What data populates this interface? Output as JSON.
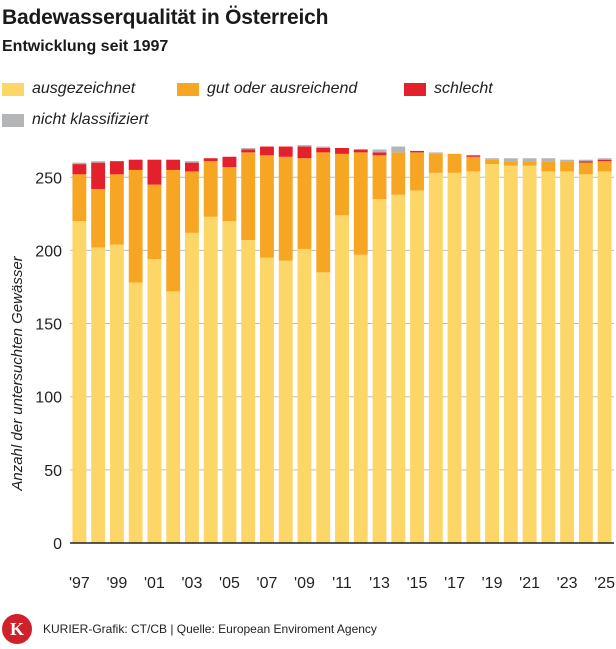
{
  "header": {
    "title": "Badewasserqualität in Österreich",
    "subtitle": "Entwicklung seit 1997"
  },
  "legend": [
    {
      "label": "ausgezeichnet",
      "color": "#fcd667"
    },
    {
      "label": "gut oder ausreichend",
      "color": "#f6a623"
    },
    {
      "label": "schlecht",
      "color": "#e3202c"
    },
    {
      "label": "nicht klassifiziert",
      "color": "#b3b5b7"
    }
  ],
  "footer": {
    "logo_letter": "K",
    "credit": "KURIER-Grafik: CT/CB | Quelle: European Enviroment Agency"
  },
  "chart_data": {
    "type": "bar",
    "stacked": true,
    "ylabel": "Anzahl der untersuchten Gewässer",
    "ylim": [
      0,
      270
    ],
    "yticks": [
      0,
      50,
      100,
      150,
      200,
      250
    ],
    "grid": true,
    "legend_position": "top",
    "categories": [
      "1997",
      "1998",
      "1999",
      "2000",
      "2001",
      "2002",
      "2003",
      "2004",
      "2005",
      "2006",
      "2007",
      "2008",
      "2009",
      "2010",
      "2011",
      "2012",
      "2013",
      "2014",
      "2015",
      "2016",
      "2017",
      "2018",
      "2019",
      "2020",
      "2021",
      "2022",
      "2023",
      "2024",
      "2025"
    ],
    "xtick_labels": [
      "'97",
      "",
      "'99",
      "",
      "'01",
      "",
      "'03",
      "",
      "'05",
      "",
      "'07",
      "",
      "'09",
      "",
      "'11",
      "",
      "'13",
      "",
      "'15",
      "",
      "'17",
      "",
      "'19",
      "",
      "'21",
      "",
      "'23",
      "",
      "'25"
    ],
    "series": [
      {
        "name": "ausgezeichnet",
        "color": "#fcd667",
        "values": [
          220,
          202,
          204,
          178,
          194,
          172,
          212,
          223,
          220,
          207,
          195,
          193,
          201,
          185,
          224,
          197,
          235,
          238,
          241,
          253,
          253,
          254,
          259,
          258,
          258,
          254,
          254,
          252,
          254
        ]
      },
      {
        "name": "gut oder ausreichend",
        "color": "#f6a623",
        "values": [
          32,
          40,
          48,
          77,
          51,
          83,
          42,
          38,
          37,
          60,
          70,
          71,
          62,
          82,
          42,
          70,
          30,
          29,
          26,
          13,
          13,
          10,
          3,
          3,
          3,
          7,
          7,
          8,
          7
        ]
      },
      {
        "name": "schlecht",
        "color": "#e3202c",
        "values": [
          7,
          18,
          9,
          7,
          17,
          7,
          6,
          2,
          7,
          2,
          6,
          7,
          8,
          3,
          4,
          2,
          2,
          0,
          1,
          0,
          0,
          1,
          0,
          0,
          0,
          0,
          0,
          1,
          1
        ]
      },
      {
        "name": "nicht klassifiziert",
        "color": "#b3b5b7",
        "values": [
          1,
          1,
          0,
          0,
          0,
          0,
          1,
          0,
          0,
          1,
          0,
          0,
          1,
          1,
          0,
          0,
          2,
          4,
          0,
          1,
          0,
          0,
          1,
          2,
          2,
          2,
          1,
          1,
          1
        ]
      }
    ]
  }
}
